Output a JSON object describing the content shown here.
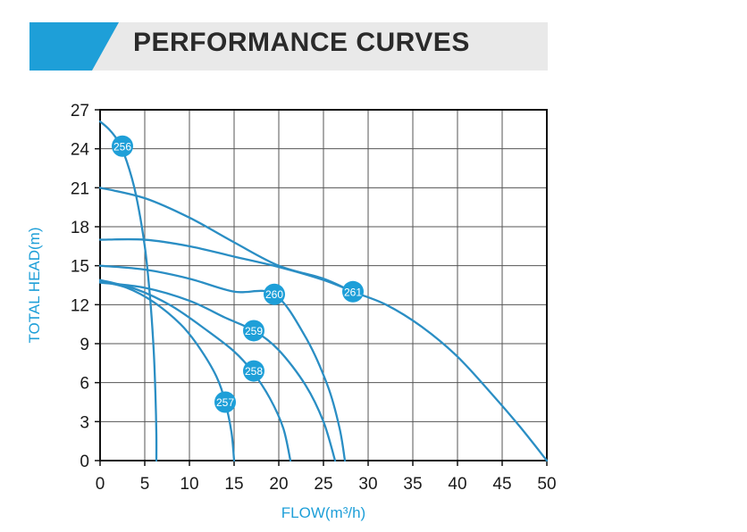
{
  "header": {
    "title": "PERFORMANCE CURVES"
  },
  "colors": {
    "accent": "#1e9fd8",
    "curve": "#2a8ec4",
    "grid": "#555555",
    "banner_gray": "#e9e9e9"
  },
  "chart_data": {
    "type": "line",
    "title": "PERFORMANCE CURVES",
    "xlabel": "FLOW(m³/h)",
    "ylabel": "TOTAL HEAD(m)",
    "xlim": [
      0,
      50
    ],
    "ylim": [
      0,
      27
    ],
    "xticks": [
      0,
      5,
      10,
      15,
      20,
      25,
      30,
      35,
      40,
      45,
      50
    ],
    "yticks": [
      0,
      3,
      6,
      9,
      12,
      15,
      18,
      21,
      24,
      27
    ],
    "grid": true,
    "series": [
      {
        "name": "256",
        "label_at": [
          2.5,
          24.2
        ],
        "x": [
          0,
          1,
          2,
          3,
          4,
          5,
          5.6,
          6,
          6.2,
          6.3,
          6.3
        ],
        "y": [
          26.1,
          25.5,
          24.6,
          23.0,
          20.5,
          16.5,
          12.5,
          8.5,
          5,
          2,
          0
        ]
      },
      {
        "name": "257",
        "label_at": [
          14,
          4.5
        ],
        "x": [
          0,
          3,
          6,
          9,
          11,
          13,
          14,
          14.7,
          15
        ],
        "y": [
          13.8,
          13.3,
          12.2,
          10.5,
          8.8,
          6.5,
          4.5,
          2.2,
          0
        ]
      },
      {
        "name": "258",
        "label_at": [
          17.2,
          6.9
        ],
        "x": [
          0,
          4,
          8,
          12,
          15,
          17,
          19,
          20.5,
          21.3
        ],
        "y": [
          13.9,
          13.2,
          11.9,
          10.0,
          8.4,
          6.9,
          4.8,
          2.5,
          0
        ]
      },
      {
        "name": "259",
        "label_at": [
          17.2,
          10.0
        ],
        "x": [
          0,
          5,
          10,
          14,
          17.2,
          20,
          23,
          25,
          26.3
        ],
        "y": [
          13.7,
          13.3,
          12.3,
          11.0,
          10.0,
          8.5,
          5.8,
          3.0,
          0
        ]
      },
      {
        "name": "260",
        "label_at": [
          19.5,
          12.8
        ],
        "x": [
          0,
          5,
          10,
          15,
          19.5,
          23,
          25.5,
          26.8,
          27.4
        ],
        "y": [
          15.0,
          14.7,
          14.0,
          13.0,
          12.8,
          9.5,
          5.7,
          2.5,
          0
        ]
      },
      {
        "name": "261",
        "label_at": [
          28.3,
          13.0
        ],
        "x": [
          0,
          5,
          10,
          15,
          20,
          25,
          28.3,
          32,
          36,
          40,
          44,
          47,
          50
        ],
        "y": [
          21.0,
          20.2,
          18.7,
          16.8,
          15.0,
          14.0,
          13.0,
          12.0,
          10.3,
          8.0,
          5.0,
          2.6,
          0
        ]
      },
      {
        "name": "unlabeled-17m",
        "label_at": null,
        "x": [
          0,
          5,
          10,
          15,
          20,
          25,
          28.3
        ],
        "y": [
          17.0,
          17.0,
          16.5,
          15.7,
          14.9,
          13.9,
          13.0
        ]
      }
    ]
  }
}
